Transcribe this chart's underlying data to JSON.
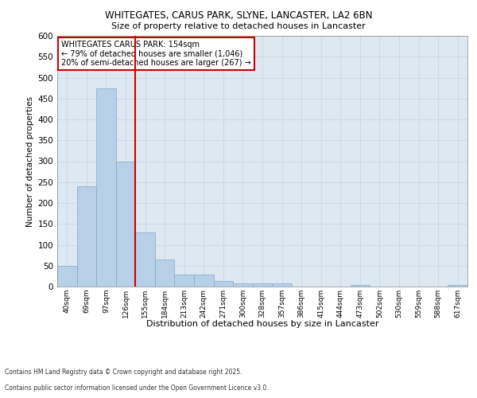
{
  "title_line1": "WHITEGATES, CARUS PARK, SLYNE, LANCASTER, LA2 6BN",
  "title_line2": "Size of property relative to detached houses in Lancaster",
  "xlabel": "Distribution of detached houses by size in Lancaster",
  "ylabel": "Number of detached properties",
  "categories": [
    "40sqm",
    "69sqm",
    "97sqm",
    "126sqm",
    "155sqm",
    "184sqm",
    "213sqm",
    "242sqm",
    "271sqm",
    "300sqm",
    "328sqm",
    "357sqm",
    "386sqm",
    "415sqm",
    "444sqm",
    "473sqm",
    "502sqm",
    "530sqm",
    "559sqm",
    "588sqm",
    "617sqm"
  ],
  "bar_heights": [
    50,
    240,
    475,
    300,
    130,
    65,
    28,
    28,
    14,
    7,
    7,
    7,
    0,
    0,
    0,
    4,
    0,
    0,
    0,
    0,
    4
  ],
  "bar_color": "#b8cfe8",
  "bar_edge_color": "#7aaad0",
  "vline_x": 3.5,
  "vline_color": "#cc0000",
  "annotation_title": "WHITEGATES CARUS PARK: 154sqm",
  "annotation_line2": "← 79% of detached houses are smaller (1,046)",
  "annotation_line3": "20% of semi-detached houses are larger (267) →",
  "annotation_box_color": "#cc0000",
  "annotation_bg": "#ffffff",
  "ylim": [
    0,
    600
  ],
  "yticks": [
    0,
    50,
    100,
    150,
    200,
    250,
    300,
    350,
    400,
    450,
    500,
    550,
    600
  ],
  "grid_color": "#c8d8e8",
  "bg_color": "#dde8f0",
  "footnote1": "Contains HM Land Registry data © Crown copyright and database right 2025.",
  "footnote2": "Contains public sector information licensed under the Open Government Licence v3.0."
}
